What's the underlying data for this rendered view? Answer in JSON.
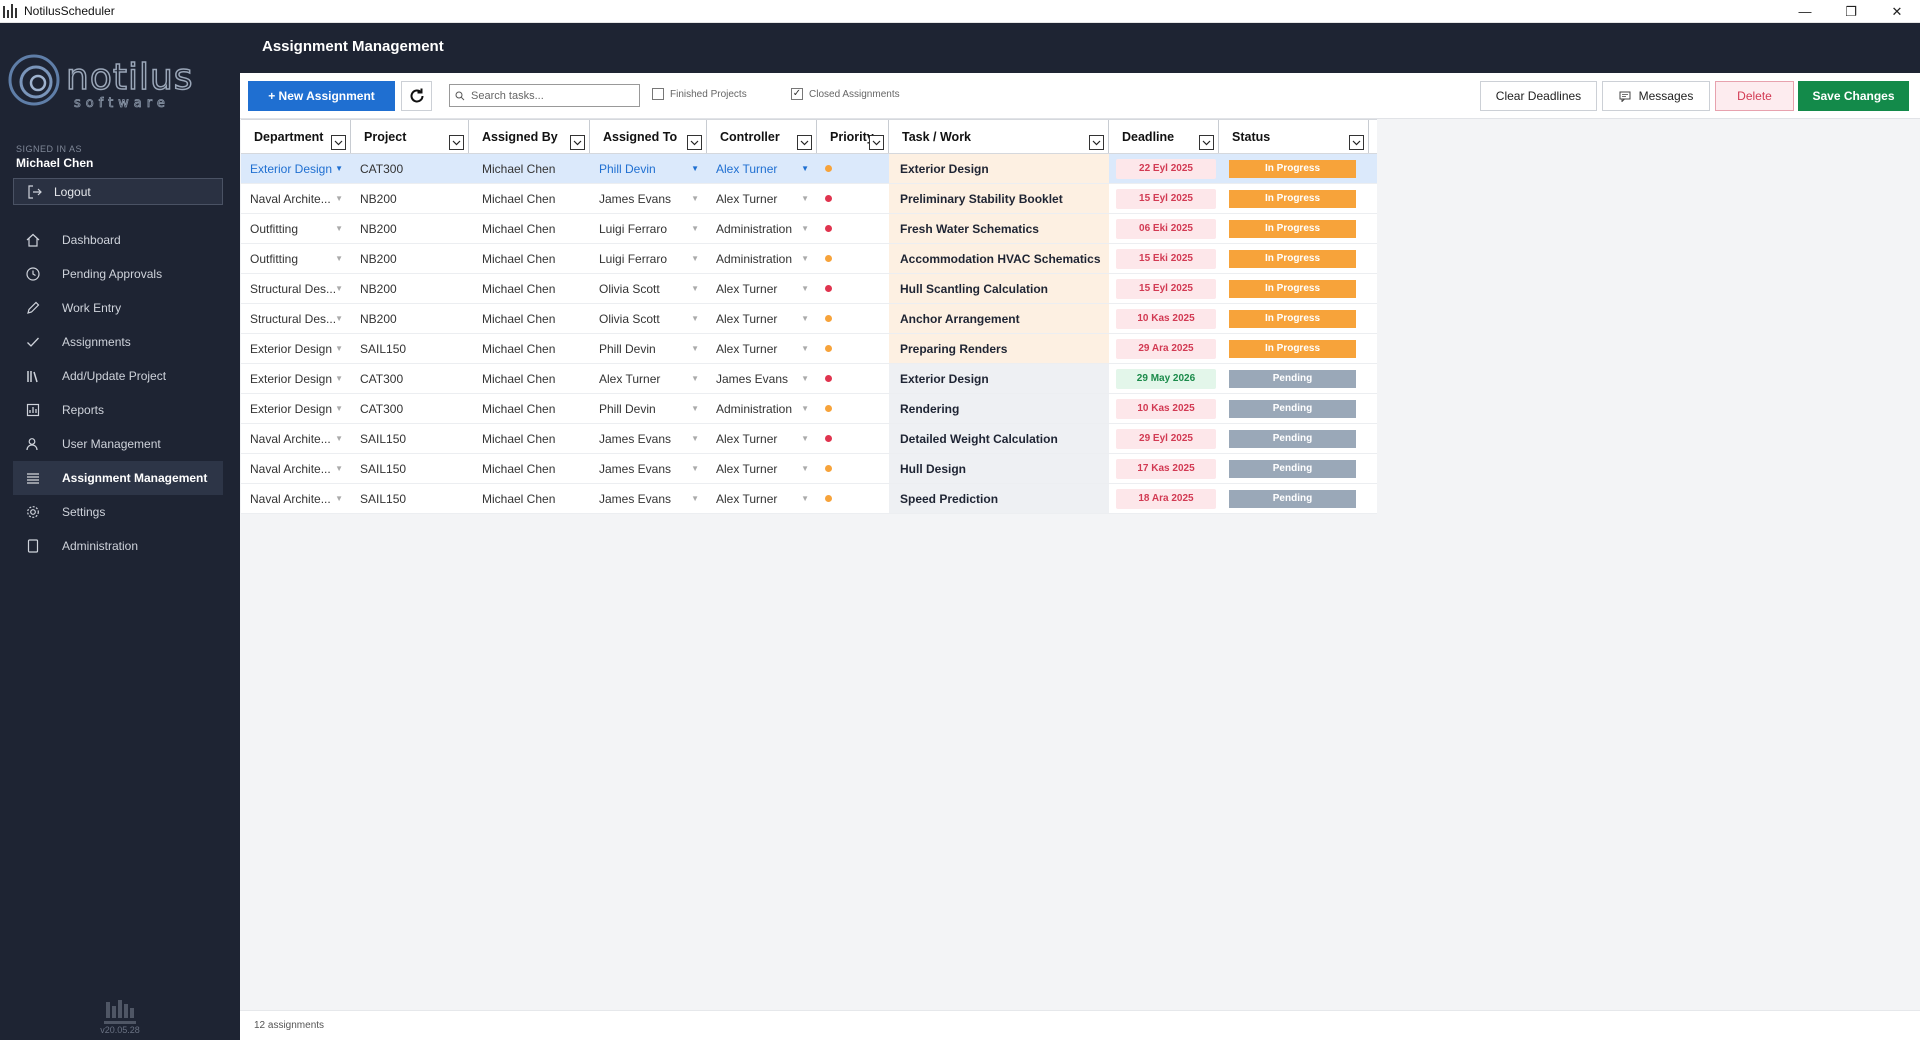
{
  "window": {
    "title": "NotilusScheduler",
    "controls": {
      "minimize": "—",
      "restore": "❐",
      "close": "✕"
    }
  },
  "sidebar": {
    "signed_in_label": "SIGNED IN AS",
    "user": "Michael Chen",
    "logout_label": "Logout",
    "items": [
      {
        "label": "Dashboard",
        "icon": "home-icon"
      },
      {
        "label": "Pending Approvals",
        "icon": "clock-icon"
      },
      {
        "label": "Work Entry",
        "icon": "pencil-icon"
      },
      {
        "label": "Assignments",
        "icon": "check-icon"
      },
      {
        "label": "Add/Update Project",
        "icon": "books-icon"
      },
      {
        "label": "Reports",
        "icon": "report-icon"
      },
      {
        "label": "User Management",
        "icon": "user-icon"
      },
      {
        "label": "Assignment Management",
        "icon": "list-icon",
        "active": true
      },
      {
        "label": "Settings",
        "icon": "gear-icon"
      },
      {
        "label": "Administration",
        "icon": "tablet-icon"
      }
    ],
    "version": "v20.05.28"
  },
  "header": {
    "title": "Assignment Management"
  },
  "toolbar": {
    "new_assignment": "+ New Assignment",
    "search_placeholder": "Search tasks...",
    "finished_projects": "Finished Projects",
    "closed_assignments": "Closed Assignments",
    "clear_deadlines": "Clear Deadlines",
    "messages": "Messages",
    "delete": "Delete",
    "save_changes": "Save Changes"
  },
  "grid": {
    "columns": [
      "Department",
      "Project",
      "Assigned By",
      "Assigned To",
      "Controller",
      "Priority",
      "Task / Work",
      "Deadline",
      "Status"
    ],
    "rows": [
      {
        "department": "Exterior Design",
        "project": "CAT300",
        "assigned_by": "Michael Chen",
        "assigned_to": "Phill Devin",
        "controller": "Alex Turner",
        "priority": "medium",
        "task": "Exterior Design",
        "deadline": "22 Eyl 2025",
        "status": "In Progress"
      },
      {
        "department": "Naval Archite...",
        "project": "NB200",
        "assigned_by": "Michael Chen",
        "assigned_to": "James Evans",
        "controller": "Alex Turner",
        "priority": "high",
        "task": "Preliminary Stability Booklet",
        "deadline": "15 Eyl 2025",
        "status": "In Progress"
      },
      {
        "department": "Outfitting",
        "project": "NB200",
        "assigned_by": "Michael Chen",
        "assigned_to": "Luigi Ferraro",
        "controller": "Administration",
        "priority": "high",
        "task": "Fresh Water Schematics",
        "deadline": "06 Eki 2025",
        "status": "In Progress"
      },
      {
        "department": "Outfitting",
        "project": "NB200",
        "assigned_by": "Michael Chen",
        "assigned_to": "Luigi Ferraro",
        "controller": "Administration",
        "priority": "medium",
        "task": "Accommodation HVAC Schematics",
        "deadline": "15 Eki 2025",
        "status": "In Progress"
      },
      {
        "department": "Structural Des...",
        "project": "NB200",
        "assigned_by": "Michael Chen",
        "assigned_to": "Olivia Scott",
        "controller": "Alex Turner",
        "priority": "high",
        "task": "Hull Scantling Calculation",
        "deadline": "15 Eyl 2025",
        "status": "In Progress"
      },
      {
        "department": "Structural Des...",
        "project": "NB200",
        "assigned_by": "Michael Chen",
        "assigned_to": "Olivia Scott",
        "controller": "Alex Turner",
        "priority": "medium",
        "task": "Anchor Arrangement",
        "deadline": "10 Kas 2025",
        "status": "In Progress"
      },
      {
        "department": "Exterior Design",
        "project": "SAIL150",
        "assigned_by": "Michael Chen",
        "assigned_to": "Phill Devin",
        "controller": "Alex Turner",
        "priority": "medium",
        "task": "Preparing Renders",
        "deadline": "29 Ara 2025",
        "status": "In Progress"
      },
      {
        "department": "Exterior Design",
        "project": "CAT300",
        "assigned_by": "Michael Chen",
        "assigned_to": "Alex Turner",
        "controller": "James Evans",
        "priority": "high",
        "task": "Exterior Design",
        "deadline": "29 May 2026",
        "status": "Pending",
        "deadline_ok": true
      },
      {
        "department": "Exterior Design",
        "project": "CAT300",
        "assigned_by": "Michael Chen",
        "assigned_to": "Phill Devin",
        "controller": "Administration",
        "priority": "medium",
        "task": "Rendering",
        "deadline": "10 Kas 2025",
        "status": "Pending"
      },
      {
        "department": "Naval Archite...",
        "project": "SAIL150",
        "assigned_by": "Michael Chen",
        "assigned_to": "James Evans",
        "controller": "Alex Turner",
        "priority": "high",
        "task": "Detailed Weight Calculation",
        "deadline": "29 Eyl 2025",
        "status": "Pending"
      },
      {
        "department": "Naval Archite...",
        "project": "SAIL150",
        "assigned_by": "Michael Chen",
        "assigned_to": "James Evans",
        "controller": "Alex Turner",
        "priority": "medium",
        "task": "Hull Design",
        "deadline": "17 Kas 2025",
        "status": "Pending"
      },
      {
        "department": "Naval Archite...",
        "project": "SAIL150",
        "assigned_by": "Michael Chen",
        "assigned_to": "James Evans",
        "controller": "Alex Turner",
        "priority": "medium",
        "task": "Speed Prediction",
        "deadline": "18 Ara 2025",
        "status": "Pending"
      }
    ]
  },
  "colors": {
    "priority_high": "#e0344f",
    "priority_medium": "#f7a33a",
    "accent": "#1f6fd1",
    "success": "#138a4a"
  },
  "footer": {
    "count_text": "12 assignments"
  }
}
